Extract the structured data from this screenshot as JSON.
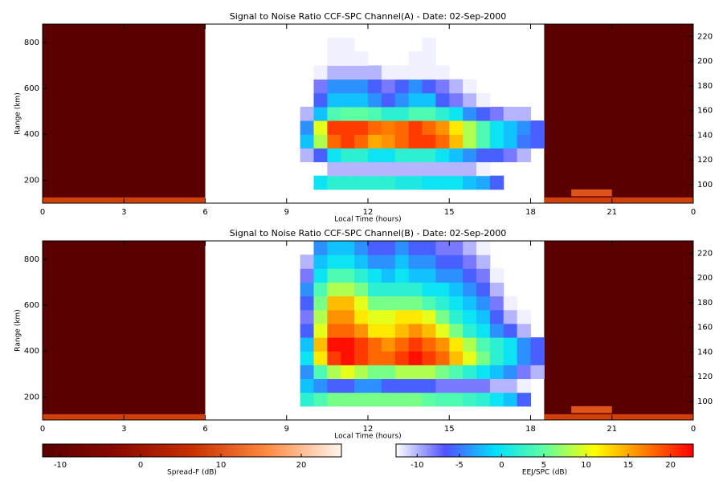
{
  "chart_data": [
    {
      "type": "heatmap",
      "title": "Signal to Noise Ratio CCF-SPC Channel(A) - Date: 02-Sep-2000",
      "xlabel": "Local Time (hours)",
      "ylabel": "Range (km)",
      "xlim": [
        0,
        24
      ],
      "xticks": [
        0,
        3,
        6,
        9,
        12,
        15,
        18,
        21,
        {
          "value": 24,
          "label": "0"
        }
      ],
      "ylim": [
        100,
        880
      ],
      "yticks": [
        200,
        400,
        600,
        800
      ],
      "y2lim": [
        85,
        230
      ],
      "y2ticks": [
        100,
        120,
        140,
        160,
        180,
        200,
        220
      ],
      "spread_f": [
        {
          "x": [
            0,
            6
          ],
          "y": [
            100,
            880
          ],
          "value": -12
        },
        {
          "x": [
            18.5,
            24
          ],
          "y": [
            100,
            880
          ],
          "value": -12
        },
        {
          "x": [
            0,
            6
          ],
          "y": [
            100,
            125
          ],
          "value": 8
        },
        {
          "x": [
            18.5,
            24
          ],
          "y": [
            100,
            125
          ],
          "value": 8
        },
        {
          "x": [
            19.5,
            21
          ],
          "y": [
            130,
            160
          ],
          "value": 10
        }
      ],
      "x_edges": [
        9.5,
        10,
        10.5,
        11,
        11.5,
        12,
        12.5,
        13,
        13.5,
        14,
        14.5,
        15,
        15.5,
        16,
        16.5,
        17,
        17.5,
        18,
        18.5
      ],
      "y_edges": [
        100,
        160,
        220,
        280,
        340,
        400,
        460,
        520,
        580,
        640,
        700,
        760,
        820,
        880
      ],
      "z": [
        [
          null,
          null,
          null,
          null,
          null,
          null,
          null,
          null,
          null,
          null,
          null,
          null,
          null,
          null,
          null,
          null,
          null,
          null
        ],
        [
          null,
          0,
          2,
          2,
          2,
          2,
          2,
          1,
          1,
          0,
          0,
          0,
          -2,
          -3,
          -6,
          null,
          null,
          null
        ],
        [
          null,
          null,
          -10,
          -10,
          -10,
          -10,
          -10,
          -10,
          -10,
          -10,
          -10,
          -10,
          -10,
          -12,
          null,
          null,
          null,
          null
        ],
        [
          -10,
          -6,
          0,
          2,
          2,
          0,
          0,
          2,
          2,
          2,
          0,
          -2,
          -4,
          -6,
          -6,
          -8,
          -10,
          null
        ],
        [
          -2,
          8,
          18,
          20,
          18,
          15,
          16,
          18,
          20,
          20,
          18,
          14,
          8,
          4,
          0,
          -2,
          -5,
          -6
        ],
        [
          -4,
          10,
          20,
          20,
          20,
          18,
          17,
          18,
          20,
          18,
          16,
          12,
          8,
          4,
          0,
          -2,
          -4,
          -6
        ],
        [
          -10,
          -2,
          4,
          5,
          5,
          4,
          2,
          2,
          4,
          4,
          2,
          0,
          -4,
          -6,
          -8,
          -10,
          -10,
          null
        ],
        [
          null,
          -6,
          -2,
          -2,
          -2,
          -4,
          -6,
          -4,
          -2,
          -2,
          -6,
          -8,
          -10,
          -12,
          null,
          null,
          null,
          null
        ],
        [
          null,
          -8,
          -4,
          -4,
          -4,
          -6,
          -8,
          -6,
          -4,
          -6,
          -8,
          -10,
          -12,
          null,
          null,
          null,
          null,
          null
        ],
        [
          null,
          -12,
          -10,
          -10,
          -10,
          -10,
          -12,
          -12,
          -12,
          -12,
          -12,
          null,
          null,
          null,
          null,
          null,
          null,
          null
        ],
        [
          null,
          null,
          -12,
          -12,
          -12,
          null,
          null,
          null,
          -12,
          -12,
          null,
          null,
          null,
          null,
          null,
          null,
          null,
          null
        ],
        [
          null,
          null,
          -12,
          -12,
          null,
          null,
          null,
          null,
          null,
          -12,
          null,
          null,
          null,
          null,
          null,
          null,
          null,
          null
        ],
        [
          null,
          null,
          null,
          null,
          null,
          null,
          null,
          null,
          null,
          null,
          null,
          null,
          null,
          null,
          null,
          null,
          null,
          null
        ]
      ]
    },
    {
      "type": "heatmap",
      "title": "Signal to Noise Ratio CCF-SPC Channel(B) - Date: 02-Sep-2000",
      "xlabel": "Local Time (hours)",
      "ylabel": "Range (km)",
      "xlim": [
        0,
        24
      ],
      "xticks": [
        0,
        3,
        6,
        9,
        12,
        15,
        18,
        21,
        {
          "value": 24,
          "label": "0"
        }
      ],
      "ylim": [
        100,
        880
      ],
      "yticks": [
        200,
        400,
        600,
        800
      ],
      "y2lim": [
        85,
        230
      ],
      "y2ticks": [
        100,
        120,
        140,
        160,
        180,
        200,
        220
      ],
      "spread_f": [
        {
          "x": [
            0,
            6
          ],
          "y": [
            100,
            880
          ],
          "value": -12
        },
        {
          "x": [
            18.5,
            24
          ],
          "y": [
            100,
            880
          ],
          "value": -12
        },
        {
          "x": [
            0,
            6
          ],
          "y": [
            100,
            125
          ],
          "value": 8
        },
        {
          "x": [
            18.5,
            24
          ],
          "y": [
            100,
            125
          ],
          "value": 8
        },
        {
          "x": [
            19.5,
            21
          ],
          "y": [
            130,
            160
          ],
          "value": 10
        }
      ],
      "x_edges": [
        9.5,
        10,
        10.5,
        11,
        11.5,
        12,
        12.5,
        13,
        13.5,
        14,
        14.5,
        15,
        15.5,
        16,
        16.5,
        17,
        17.5,
        18,
        18.5
      ],
      "y_edges": [
        100,
        160,
        220,
        280,
        340,
        400,
        460,
        520,
        580,
        640,
        700,
        760,
        820,
        880
      ],
      "z": [
        [
          null,
          null,
          null,
          null,
          null,
          null,
          null,
          null,
          null,
          null,
          null,
          null,
          null,
          null,
          null,
          null,
          null,
          null
        ],
        [
          2,
          4,
          6,
          6,
          6,
          6,
          6,
          6,
          6,
          5,
          4,
          4,
          3,
          2,
          0,
          -2,
          -6,
          null
        ],
        [
          -2,
          -4,
          -6,
          -6,
          -4,
          -4,
          -6,
          -6,
          -6,
          -6,
          -8,
          -8,
          -8,
          -8,
          -10,
          -10,
          -12,
          null
        ],
        [
          -4,
          4,
          8,
          10,
          8,
          6,
          6,
          8,
          8,
          8,
          6,
          4,
          2,
          0,
          -2,
          -4,
          -8,
          -10
        ],
        [
          0,
          12,
          20,
          22,
          20,
          18,
          18,
          20,
          22,
          20,
          18,
          14,
          10,
          6,
          2,
          0,
          -4,
          -6
        ],
        [
          -2,
          14,
          22,
          22,
          20,
          18,
          16,
          18,
          20,
          18,
          16,
          12,
          8,
          4,
          2,
          0,
          -4,
          -6
        ],
        [
          -6,
          10,
          18,
          18,
          16,
          12,
          12,
          14,
          16,
          14,
          10,
          6,
          2,
          0,
          -4,
          -6,
          -10,
          null
        ],
        [
          -8,
          8,
          16,
          16,
          12,
          10,
          10,
          12,
          12,
          10,
          6,
          2,
          0,
          -2,
          -6,
          -10,
          -12,
          null
        ],
        [
          -6,
          6,
          14,
          14,
          10,
          6,
          6,
          6,
          6,
          4,
          2,
          0,
          -2,
          -4,
          -8,
          -12,
          null,
          null
        ],
        [
          -4,
          4,
          8,
          8,
          6,
          2,
          2,
          2,
          2,
          0,
          0,
          -2,
          -4,
          -6,
          -10,
          null,
          null,
          null
        ],
        [
          -8,
          0,
          4,
          4,
          2,
          0,
          -2,
          0,
          -2,
          -2,
          -4,
          -4,
          -6,
          -8,
          -12,
          null,
          null,
          null
        ],
        [
          -10,
          -2,
          0,
          0,
          -2,
          -4,
          -4,
          -2,
          -4,
          -4,
          -6,
          -6,
          -8,
          -10,
          null,
          null,
          null,
          null
        ],
        [
          null,
          -4,
          -2,
          -2,
          -4,
          -6,
          -6,
          -4,
          -6,
          -6,
          -8,
          -8,
          -10,
          -12,
          null,
          null,
          null,
          null
        ]
      ]
    }
  ],
  "colorbars": [
    {
      "label": "Spread-F (dB)",
      "lim": [
        -12.2,
        25
      ],
      "ticks": [
        -10,
        0,
        10,
        20
      ],
      "colors": [
        "#5a0000",
        "#8a0a00",
        "#c83000",
        "#ff8a40",
        "#fff6ee"
      ]
    },
    {
      "label": "EEJ/SPC (dB)",
      "lim": [
        -12.5,
        22.7
      ],
      "ticks": [
        -10,
        -5,
        0,
        5,
        10,
        15,
        20
      ],
      "colors": [
        "#ffffff",
        "#5050ff",
        "#00e0ff",
        "#60ffa0",
        "#ffff00",
        "#ff8000",
        "#ff0000"
      ]
    }
  ]
}
